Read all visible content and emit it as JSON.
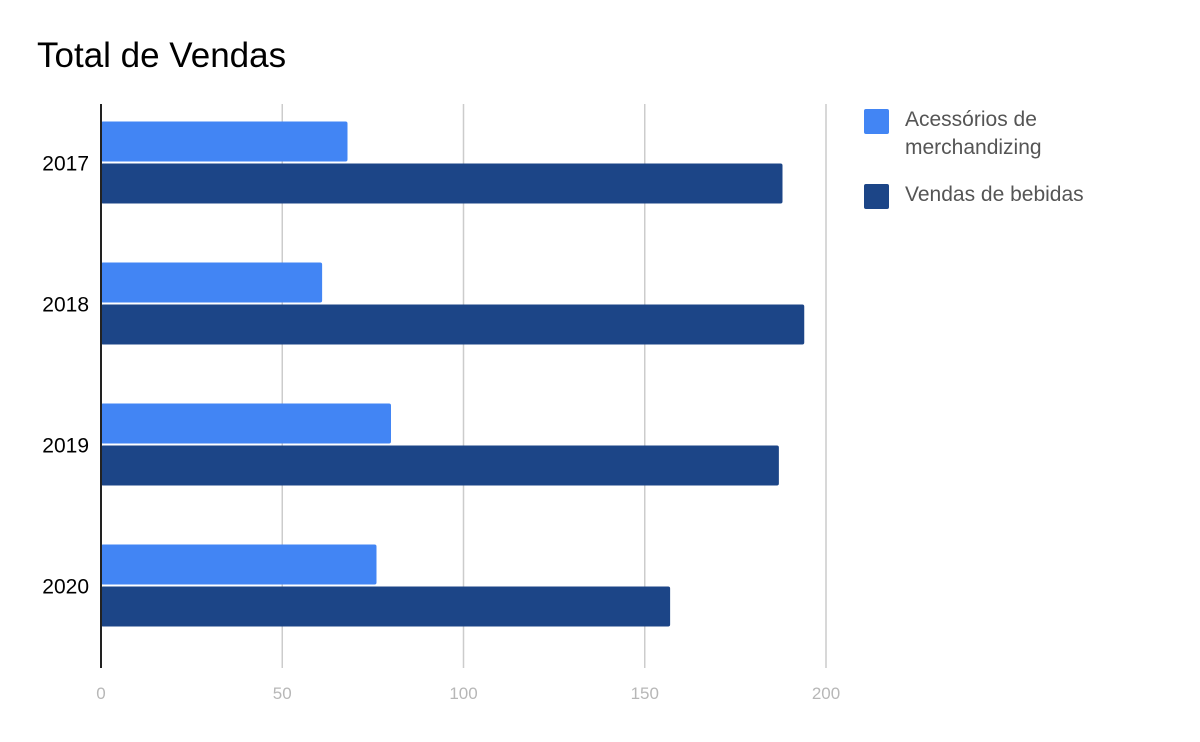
{
  "chart_data": {
    "type": "bar",
    "orientation": "horizontal",
    "title": "Total de Vendas",
    "xlabel": "",
    "ylabel": "",
    "categories": [
      "2017",
      "2018",
      "2019",
      "2020"
    ],
    "series": [
      {
        "name": "Acessórios de merchandizing",
        "color": "#4285f4",
        "values": [
          68,
          61,
          80,
          76
        ]
      },
      {
        "name": "Vendas de bebidas",
        "color": "#1c4587",
        "values": [
          188,
          194,
          187,
          157
        ]
      }
    ],
    "xlim": [
      0,
      200
    ],
    "xticks": [
      "0",
      "50",
      "100",
      "150",
      "200"
    ],
    "grid": true,
    "legend_position": "right"
  }
}
